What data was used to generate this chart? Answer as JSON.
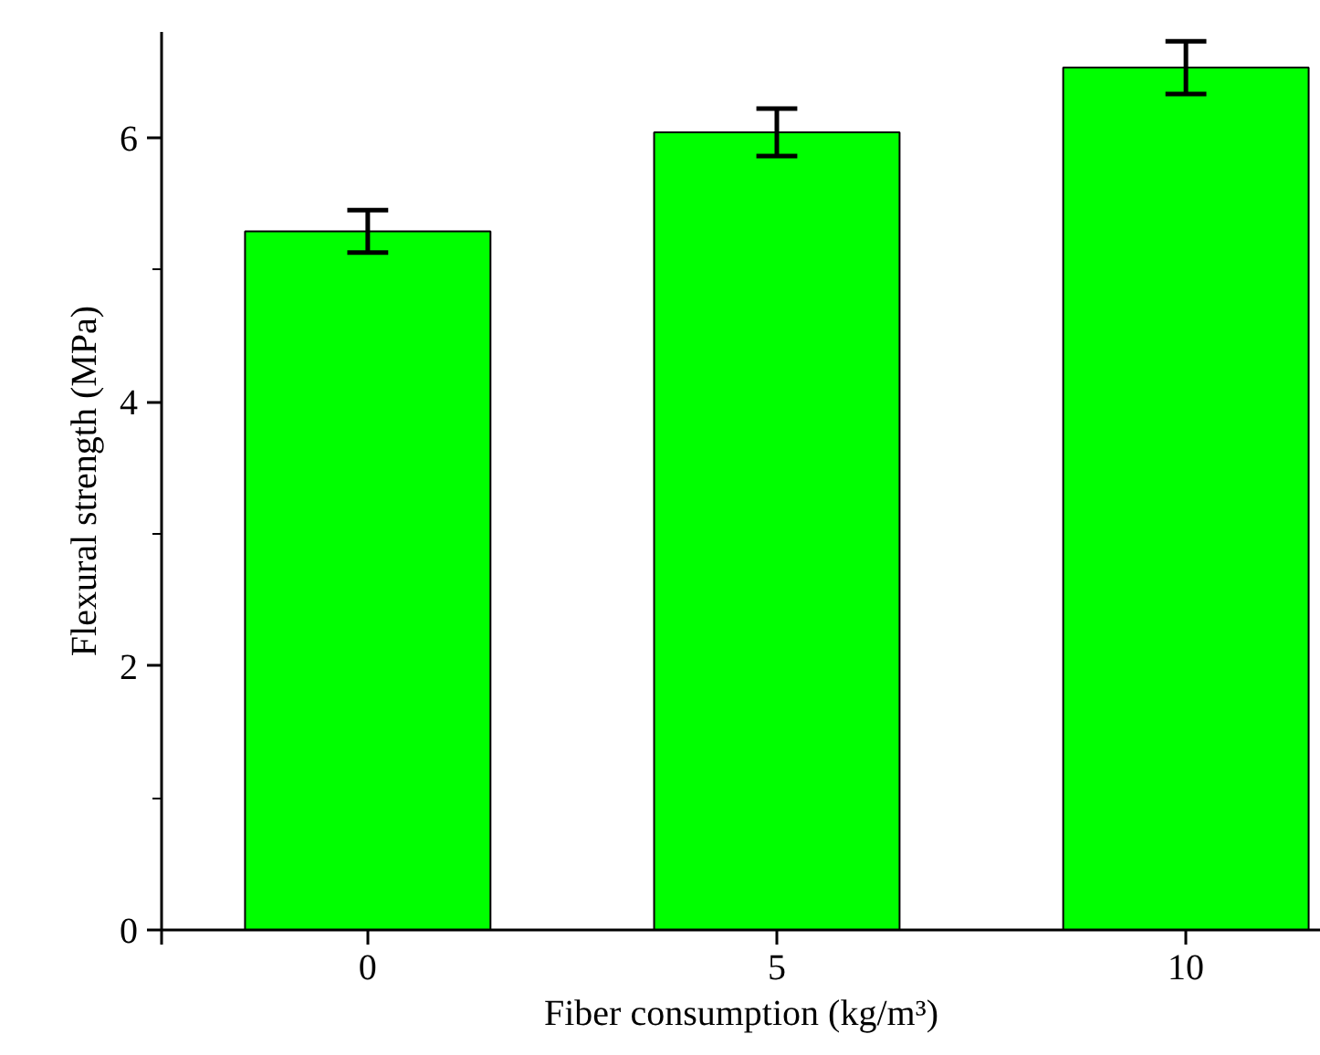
{
  "chart_data": {
    "type": "bar",
    "xlabel": "Fiber consumption (kg/m³)",
    "ylabel": "Flexural strength (MPa)",
    "categories": [
      "0",
      "5",
      "10"
    ],
    "values": [
      5.29,
      6.04,
      6.53
    ],
    "errors": [
      0.16,
      0.18,
      0.2
    ],
    "color": "#00ff00",
    "ylim": [
      0,
      6.8
    ],
    "yticks": [
      0,
      2,
      4,
      6
    ],
    "grid": false
  }
}
